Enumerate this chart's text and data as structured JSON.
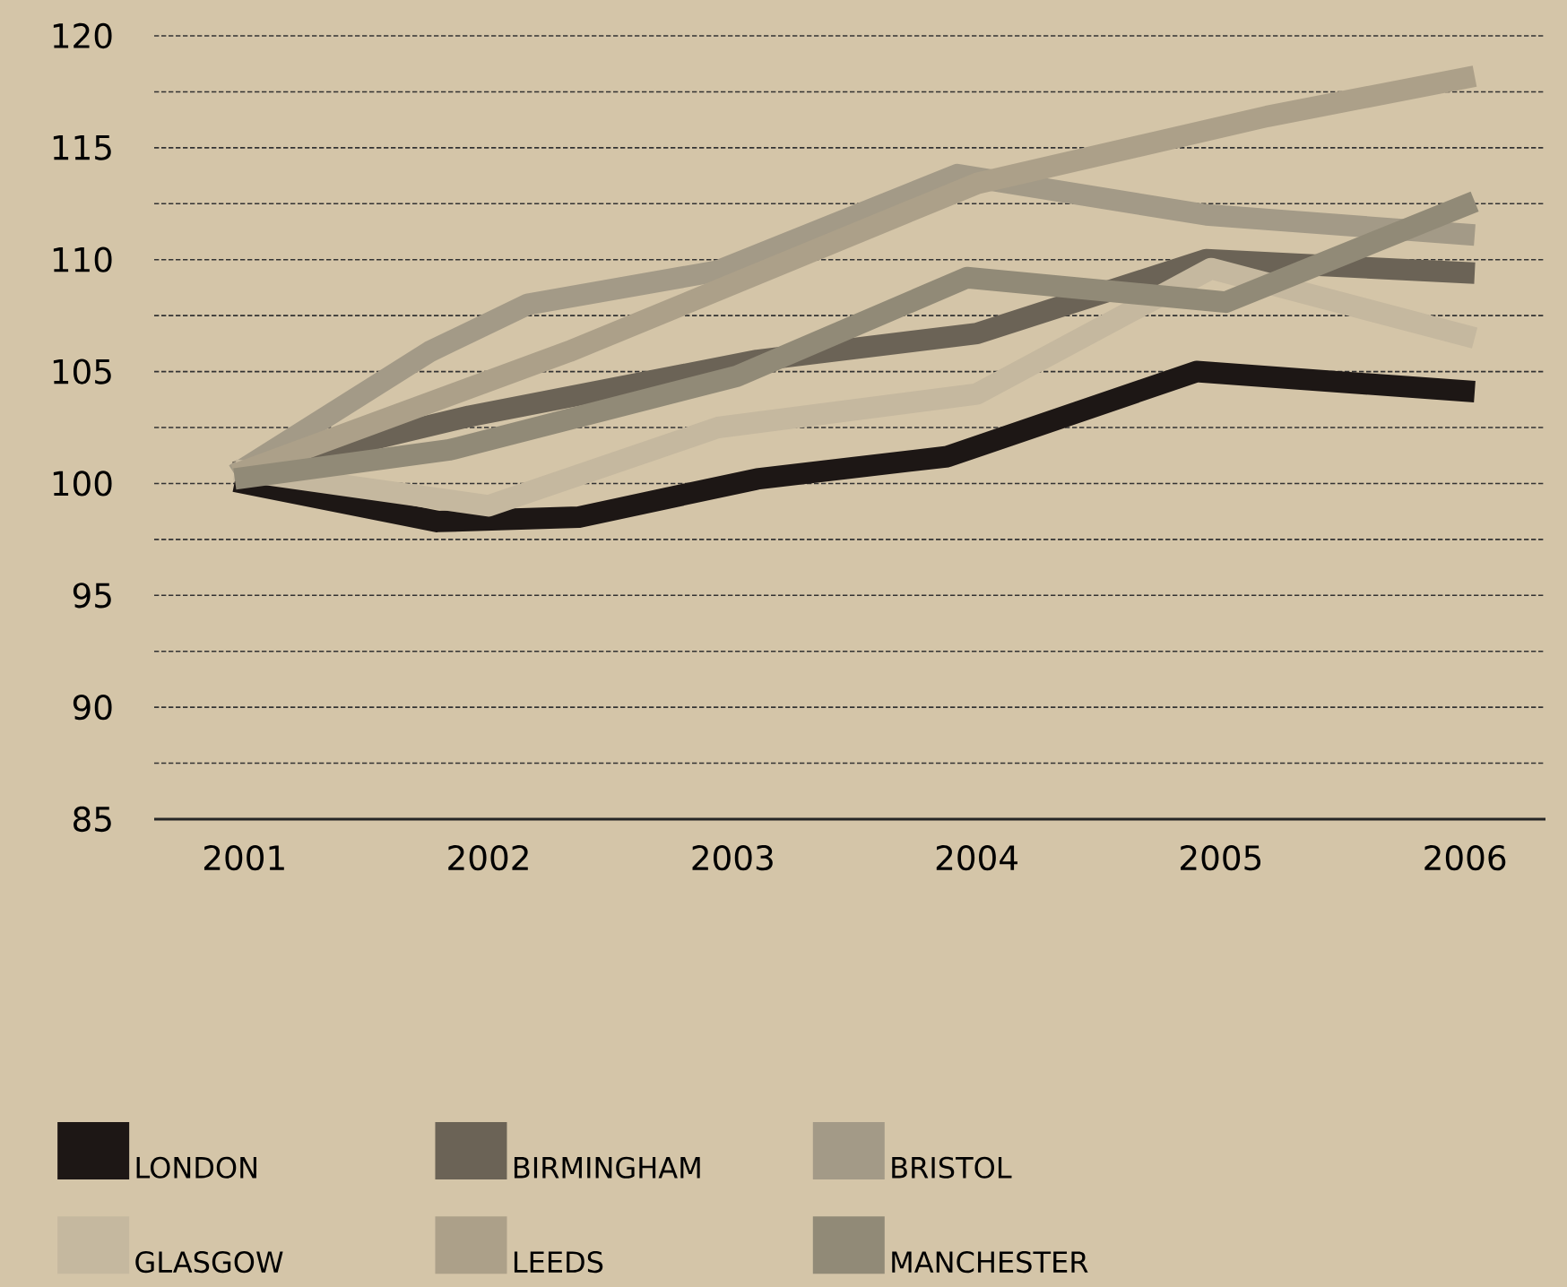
{
  "chart_data": {
    "type": "line",
    "xlim": [
      2000.63,
      2006.33
    ],
    "xticks": [
      2001,
      2002,
      2003,
      2004,
      2005,
      2006
    ],
    "ylim": [
      85,
      120
    ],
    "yticks": [
      85,
      {
        "value": 87.5,
        "label": null
      },
      90,
      {
        "value": 92.5,
        "label": null
      },
      95,
      {
        "value": 97.5,
        "label": null
      },
      100,
      {
        "value": 102.5,
        "label": null
      },
      105,
      {
        "value": 107.5,
        "label": null
      },
      110,
      {
        "value": 112.5,
        "label": null
      },
      115,
      {
        "value": 117.5,
        "label": null
      },
      120
    ],
    "grid": "y",
    "legend": "bottom",
    "marker": "none",
    "line_style": "solid",
    "series": [
      {
        "name": "LONDON",
        "color": "#1d1715",
        "x": [
          2000.96,
          2001.79,
          2002.37,
          2003.1,
          2003.88,
          2004.9,
          2006.04
        ],
        "values": [
          100.1,
          98.3,
          98.5,
          100.2,
          101.2,
          105.0,
          104.1
        ]
      },
      {
        "name": "BIRMINGHAM",
        "color": "#6b6356",
        "x": [
          2000.96,
          2001.92,
          2003.1,
          2004.0,
          2004.94,
          2006.04
        ],
        "values": [
          100.5,
          103.0,
          105.5,
          106.7,
          110.0,
          109.4
        ]
      },
      {
        "name": "BRISTOL",
        "color": "#a39a87",
        "x": [
          2000.96,
          2001.76,
          2002.16,
          2002.94,
          2003.92,
          2004.94,
          2006.04
        ],
        "values": [
          100.4,
          105.9,
          108.0,
          109.5,
          113.8,
          112.0,
          111.1
        ]
      },
      {
        "name": "GLASGOW",
        "color": "#c5b89f",
        "x": [
          2000.96,
          2002.0,
          2002.94,
          2004.0,
          2004.96,
          2006.04
        ],
        "values": [
          100.6,
          99.0,
          102.5,
          104.0,
          109.6,
          106.5
        ]
      },
      {
        "name": "LEEDS",
        "color": "#aca089",
        "x": [
          2000.96,
          2002.33,
          2004.0,
          2005.19,
          2006.04
        ],
        "values": [
          100.4,
          105.9,
          113.4,
          116.4,
          118.2
        ]
      },
      {
        "name": "MANCHESTER",
        "color": "#918a77",
        "x": [
          2000.96,
          2001.84,
          2003.02,
          2003.96,
          2005.02,
          2006.04
        ],
        "values": [
          100.2,
          101.5,
          104.8,
          109.2,
          108.1,
          112.6
        ]
      }
    ]
  }
}
